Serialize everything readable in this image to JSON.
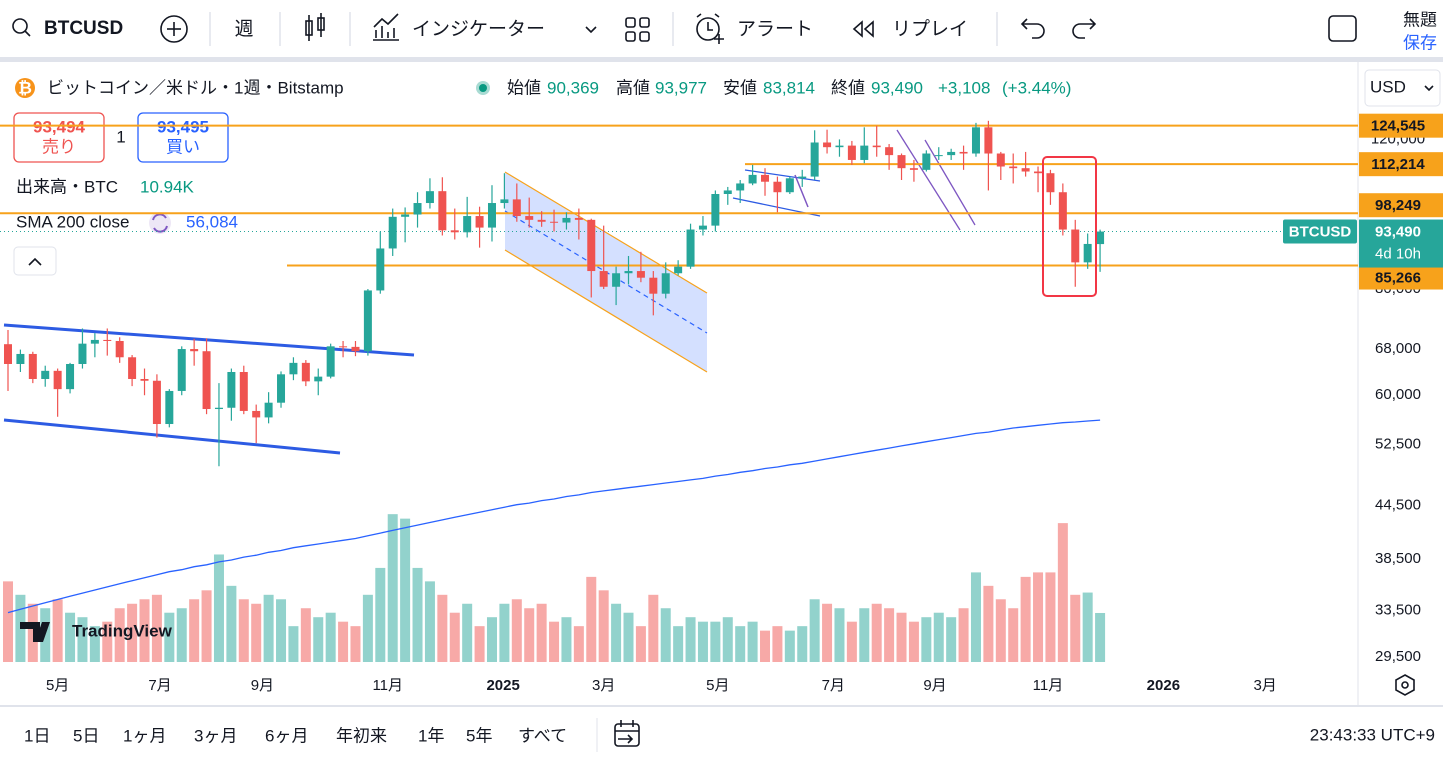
{
  "toolbar": {
    "symbol": "BTCUSD",
    "interval": "週",
    "indicators": "インジケーター",
    "alert": "アラート",
    "replay": "リプレイ",
    "layout_name": "無題",
    "save": "保存"
  },
  "legend": {
    "title": "ビットコイン／米ドル・1週・Bitstamp",
    "open_label": "始値",
    "open": "90,369",
    "high_label": "高値",
    "high": "93,977",
    "low_label": "安値",
    "low": "83,814",
    "close_label": "終値",
    "close": "93,490",
    "change": "+3,108",
    "change_pct": "(+3.44%)"
  },
  "trade": {
    "sell_price": "93,494",
    "sell": "売り",
    "spread": "1",
    "buy_price": "93,495",
    "buy": "買い"
  },
  "volume_legend": {
    "name": "出来高・BTC",
    "value": "10.94K"
  },
  "sma_legend": {
    "name": "SMA 200 close",
    "value": "56,084"
  },
  "currency": "USD",
  "chart": {
    "type": "candlestick",
    "log_scale": true,
    "ylim": [
      28500,
      148000
    ],
    "yticks": [
      {
        "value": 120000,
        "label": "120,000"
      },
      {
        "value": 80000,
        "label": "80,000"
      },
      {
        "value": 68000,
        "label": "68,000"
      },
      {
        "value": 60000,
        "label": "60,000"
      },
      {
        "value": 52500,
        "label": "52,500"
      },
      {
        "value": 44500,
        "label": "44,500"
      },
      {
        "value": 38500,
        "label": "38,500"
      },
      {
        "value": 33500,
        "label": "33,500"
      },
      {
        "value": 29500,
        "label": "29,500"
      }
    ],
    "xticks": [
      {
        "value": 4,
        "label": "5月"
      },
      {
        "value": 12.25,
        "label": "7月"
      },
      {
        "value": 20.5,
        "label": "9月"
      },
      {
        "value": 30.6,
        "label": "11月"
      },
      {
        "value": 39.9,
        "label": "2025"
      },
      {
        "value": 48,
        "label": "3月"
      },
      {
        "value": 57.2,
        "label": "5月"
      },
      {
        "value": 66.5,
        "label": "7月"
      },
      {
        "value": 74.7,
        "label": "9月"
      },
      {
        "value": 83.8,
        "label": "11月"
      },
      {
        "value": 93.1,
        "label": "2026"
      },
      {
        "value": 101.3,
        "label": "3月"
      }
    ],
    "levels": [
      {
        "value": 124545,
        "label": "124,545"
      },
      {
        "value": 112214,
        "label": "112,214"
      },
      {
        "value": 98249,
        "label": "98,249"
      },
      {
        "value": 85266,
        "label": "85,266"
      }
    ],
    "last_price": {
      "value": 93490,
      "label": "93,490"
    },
    "price_tag_symbol": "BTCUSD",
    "countdown": "4d 10h",
    "candles": [
      [
        68900,
        71600,
        60700,
        65300
      ],
      [
        65300,
        67900,
        63900,
        67100
      ],
      [
        67100,
        67500,
        62000,
        62700
      ],
      [
        62700,
        65000,
        61400,
        64100
      ],
      [
        64100,
        64500,
        56600,
        61000
      ],
      [
        61000,
        65500,
        60300,
        65300
      ],
      [
        65300,
        71900,
        64500,
        69000
      ],
      [
        69000,
        71000,
        66500,
        69700
      ],
      [
        69700,
        71900,
        66800,
        69500
      ],
      [
        69500,
        70200,
        65500,
        66500
      ],
      [
        66500,
        66900,
        61500,
        62700
      ],
      [
        62700,
        64500,
        60000,
        62400
      ],
      [
        62400,
        63500,
        53500,
        55500
      ],
      [
        55500,
        61000,
        55000,
        60700
      ],
      [
        60700,
        68500,
        60000,
        68000
      ],
      [
        68000,
        69900,
        65000,
        67600
      ],
      [
        67600,
        70000,
        57000,
        57800
      ],
      [
        57800,
        62000,
        49500,
        58000
      ],
      [
        58000,
        64500,
        56000,
        63900
      ],
      [
        63900,
        65000,
        57000,
        57500
      ],
      [
        57500,
        58500,
        52700,
        56500
      ],
      [
        56500,
        60500,
        55600,
        58800
      ],
      [
        58800,
        64000,
        58000,
        63500
      ],
      [
        63500,
        66500,
        62500,
        65500
      ],
      [
        65500,
        66000,
        61500,
        62300
      ],
      [
        62300,
        64500,
        60000,
        63100
      ],
      [
        63100,
        69000,
        62800,
        68500
      ],
      [
        68500,
        69500,
        66500,
        68400
      ],
      [
        68400,
        69500,
        66700,
        67600
      ],
      [
        67600,
        80000,
        66800,
        79700
      ],
      [
        79700,
        93500,
        79000,
        89300
      ],
      [
        89300,
        99500,
        87500,
        97300
      ],
      [
        97300,
        99800,
        90800,
        97900
      ],
      [
        97900,
        104000,
        94500,
        101000
      ],
      [
        101000,
        108000,
        99500,
        104300
      ],
      [
        104300,
        108300,
        92500,
        93800
      ],
      [
        93800,
        99500,
        91500,
        93300
      ],
      [
        93300,
        102700,
        92000,
        97500
      ],
      [
        97500,
        100000,
        89500,
        94500
      ],
      [
        94500,
        106000,
        91000,
        101000
      ],
      [
        101000,
        109500,
        99500,
        102000
      ],
      [
        102000,
        106500,
        96000,
        97500
      ],
      [
        97500,
        102500,
        94500,
        96500
      ],
      [
        96500,
        98800,
        94700,
        96000
      ],
      [
        96000,
        99200,
        93500,
        95800
      ],
      [
        95800,
        98500,
        94000,
        97000
      ],
      [
        97000,
        99500,
        91500,
        96500
      ],
      [
        96500,
        96800,
        78200,
        84000
      ],
      [
        84000,
        95000,
        80000,
        80500
      ],
      [
        80500,
        85000,
        76600,
        83500
      ],
      [
        83500,
        87500,
        81000,
        84000
      ],
      [
        84000,
        88500,
        81500,
        82500
      ],
      [
        82500,
        84000,
        74500,
        79000
      ],
      [
        79000,
        86000,
        78000,
        83500
      ],
      [
        83500,
        86500,
        83000,
        85000
      ],
      [
        85000,
        95500,
        84500,
        94000
      ],
      [
        94000,
        97500,
        92500,
        95000
      ],
      [
        95000,
        104500,
        93500,
        103500
      ],
      [
        103500,
        105500,
        100500,
        104500
      ],
      [
        104500,
        107500,
        101000,
        106500
      ],
      [
        106500,
        112000,
        106000,
        109000
      ],
      [
        109000,
        111000,
        103000,
        107000
      ],
      [
        107000,
        108500,
        98500,
        104000
      ],
      [
        104000,
        108500,
        103500,
        108000
      ],
      [
        108000,
        110500,
        105500,
        108500
      ],
      [
        108500,
        123000,
        107500,
        119000
      ],
      [
        119000,
        123200,
        115500,
        117500
      ],
      [
        117500,
        120000,
        114500,
        118000
      ],
      [
        118000,
        119500,
        112000,
        113500
      ],
      [
        113500,
        124000,
        112500,
        118000
      ],
      [
        118000,
        124500,
        114500,
        117500
      ],
      [
        117500,
        118500,
        110500,
        115000
      ],
      [
        115000,
        115500,
        107500,
        111000
      ],
      [
        111000,
        113500,
        107000,
        110500
      ],
      [
        110500,
        116500,
        110000,
        115500
      ],
      [
        115000,
        117500,
        113500,
        115000
      ],
      [
        115000,
        117000,
        113500,
        116000
      ],
      [
        116000,
        118000,
        110500,
        115500
      ],
      [
        115500,
        125500,
        114500,
        124000
      ],
      [
        124000,
        126200,
        104500,
        115500
      ],
      [
        115500,
        116000,
        107500,
        111500
      ],
      [
        111500,
        115500,
        106500,
        111000
      ],
      [
        111000,
        116000,
        108500,
        110000
      ],
      [
        110000,
        111500,
        104000,
        109500
      ],
      [
        109500,
        110500,
        100500,
        104000
      ],
      [
        104000,
        106500,
        92500,
        94000
      ],
      [
        94000,
        96500,
        80500,
        86000
      ],
      [
        86000,
        93000,
        84500,
        90400
      ],
      [
        90369,
        93977,
        83814,
        93490
      ]
    ],
    "volume": [
      18000,
      15000,
      13000,
      12000,
      14000,
      11000,
      10000,
      8000,
      9000,
      12000,
      13000,
      14000,
      15000,
      11000,
      12000,
      14000,
      16000,
      24000,
      17000,
      14000,
      13000,
      15000,
      14000,
      8000,
      12000,
      10000,
      11000,
      9000,
      8000,
      15000,
      21000,
      33000,
      32000,
      21000,
      18000,
      15000,
      11000,
      13000,
      8000,
      10000,
      13000,
      14000,
      12000,
      13000,
      9000,
      10000,
      8000,
      19000,
      16000,
      13000,
      11000,
      8000,
      15000,
      12000,
      8000,
      10000,
      9000,
      9000,
      10000,
      8000,
      9000,
      7000,
      8000,
      7000,
      8000,
      14000,
      13000,
      12000,
      9000,
      12000,
      13000,
      12000,
      11000,
      9000,
      10000,
      11000,
      10000,
      12000,
      20000,
      17000,
      14000,
      12000,
      19000,
      20000,
      20000,
      31000,
      15000,
      15500,
      10940
    ],
    "sma": [
      33300,
      33600,
      33900,
      34200,
      34500,
      34800,
      35100,
      35400,
      35700,
      36000,
      36300,
      36600,
      36900,
      37200,
      37400,
      37700,
      37900,
      38200,
      38400,
      38700,
      38900,
      39200,
      39400,
      39700,
      39900,
      40100,
      40300,
      40500,
      40700,
      41000,
      41300,
      41600,
      41900,
      42200,
      42500,
      42800,
      43100,
      43400,
      43700,
      44000,
      44300,
      44600,
      44800,
      45100,
      45300,
      45600,
      45800,
      46100,
      46300,
      46500,
      46700,
      46900,
      47100,
      47300,
      47500,
      47700,
      47900,
      48200,
      48400,
      48700,
      48900,
      49200,
      49400,
      49700,
      49900,
      50200,
      50500,
      50800,
      51100,
      51400,
      51700,
      52000,
      52300,
      52600,
      52900,
      53200,
      53500,
      53800,
      54100,
      54300,
      54600,
      54900,
      55100,
      55300,
      55500,
      55700,
      55800,
      55950,
      56084
    ],
    "up_color": "#26a69a",
    "down_color": "#ef5350",
    "sma_color": "#2962ff",
    "level_color": "#f7a21b"
  },
  "watermark": "TradingView",
  "range_buttons": [
    "1日",
    "5日",
    "1ヶ月",
    "3ヶ月",
    "6ヶ月",
    "年初来",
    "1年",
    "5年",
    "すべて"
  ],
  "clock": "23:43:33 UTC+9"
}
